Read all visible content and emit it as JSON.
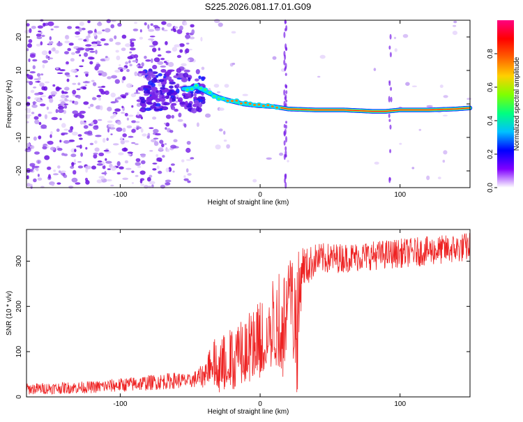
{
  "title": "S225.2026.081.17.01.G09",
  "chart_data": [
    {
      "type": "heatmap",
      "name": "spectrogram",
      "xlabel": "Height of straight line (km)",
      "ylabel": "Frequency (Hz)",
      "xlim": [
        -167,
        150
      ],
      "ylim": [
        -25,
        25
      ],
      "xticks": [
        -100,
        0,
        100
      ],
      "yticks": [
        -20,
        -10,
        0,
        10,
        20
      ],
      "colorbar": {
        "label": "Normalized spectral amplitude",
        "ticks": [
          0.0,
          0.2,
          0.4,
          0.6,
          0.8
        ],
        "range": [
          0,
          1
        ],
        "colormap": [
          "#ffffff",
          "#8000ff",
          "#0000ff",
          "#00c0ff",
          "#00ff80",
          "#80ff00",
          "#ffd000",
          "#ff6000",
          "#ff0000",
          "#ff0080"
        ]
      },
      "ridge": {
        "description": "dominant frequency track",
        "points": [
          [
            -55,
            4.5
          ],
          [
            -45,
            5.0
          ],
          [
            -38,
            3.5
          ],
          [
            -30,
            2.0
          ],
          [
            -22,
            1.0
          ],
          [
            -12,
            0.0
          ],
          [
            -2,
            -0.5
          ],
          [
            10,
            -0.8
          ],
          [
            20,
            -1.5
          ],
          [
            40,
            -1.8
          ],
          [
            60,
            -1.8
          ],
          [
            80,
            -2.2
          ],
          [
            90,
            -2.2
          ],
          [
            100,
            -1.8
          ],
          [
            120,
            -1.8
          ],
          [
            140,
            -1.5
          ],
          [
            150,
            -1.2
          ]
        ]
      }
    },
    {
      "type": "line",
      "name": "snr",
      "xlabel": "Height of straight line (km)",
      "ylabel": "SNR (10 * v/v)",
      "xlim": [
        -167,
        150
      ],
      "ylim": [
        0,
        370
      ],
      "xticks": [
        -100,
        0,
        100
      ],
      "yticks": [
        0,
        100,
        200,
        300
      ],
      "color": "#ee2222",
      "envelope": {
        "x": [
          -167,
          -120,
          -90,
          -75,
          -60,
          -50,
          -40,
          -35,
          -30,
          -20,
          -10,
          -5,
          0,
          10,
          18,
          20,
          25,
          27,
          30,
          33,
          40,
          60,
          80,
          100,
          120,
          140,
          150
        ],
        "low": [
          5,
          8,
          12,
          15,
          18,
          20,
          20,
          40,
          0,
          10,
          20,
          30,
          40,
          60,
          30,
          230,
          5,
          5,
          250,
          240,
          270,
          275,
          280,
          285,
          290,
          295,
          300
        ],
        "high": [
          30,
          35,
          45,
          50,
          55,
          50,
          75,
          140,
          130,
          160,
          190,
          210,
          230,
          280,
          300,
          320,
          320,
          320,
          340,
          330,
          340,
          340,
          345,
          350,
          355,
          360,
          365
        ]
      }
    }
  ]
}
